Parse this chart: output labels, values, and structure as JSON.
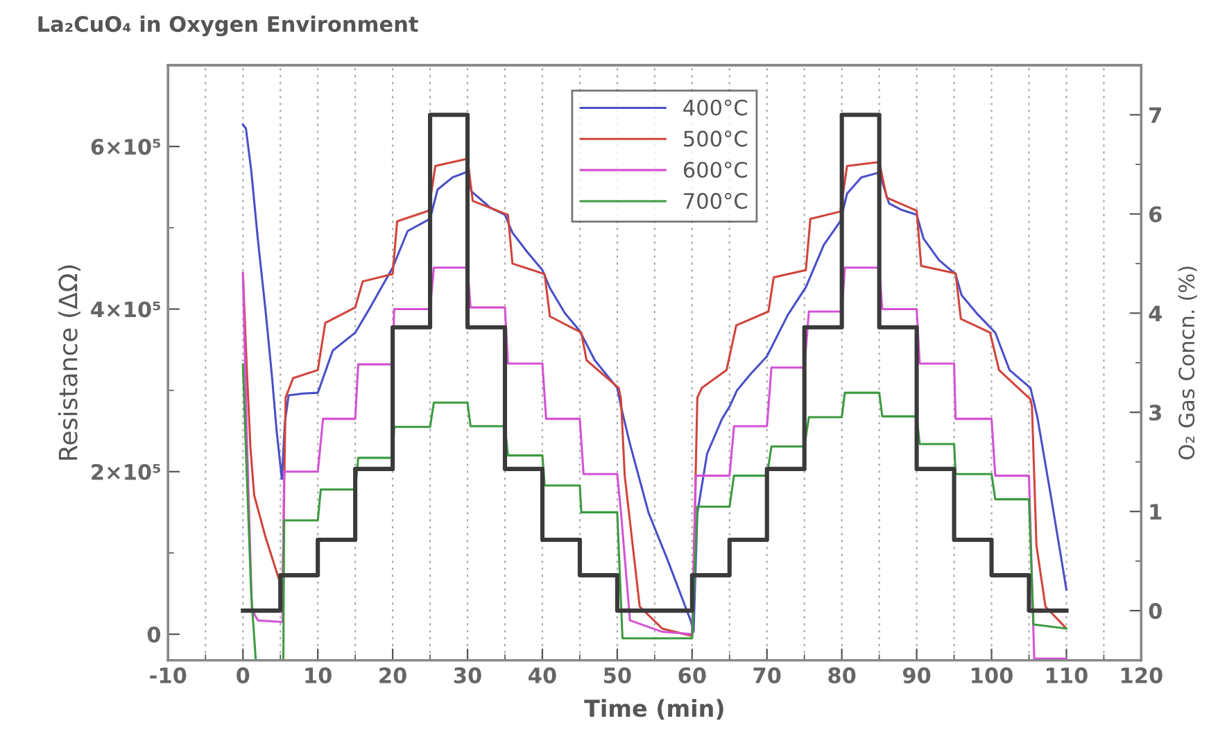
{
  "chart_data": {
    "type": "line",
    "title": "La₂CuO₄ in Oxygen Environment",
    "xlabel": "Time (min)",
    "ylabel": "Resistance (ΔΩ)",
    "y2label": "O₂ Gas Concn. (%)",
    "xlim": [
      -10,
      120
    ],
    "ylim": [
      -32000,
      700000
    ],
    "y2lim": [
      -0.7,
      7.7
    ],
    "xticks": [
      -10,
      {
        "value": -5,
        "label": null
      },
      0,
      {
        "value": 5,
        "label": null
      },
      10,
      {
        "value": 15,
        "label": null
      },
      20,
      {
        "value": 25,
        "label": null
      },
      30,
      {
        "value": 35,
        "label": null
      },
      40,
      {
        "value": 45,
        "label": null
      },
      50,
      {
        "value": 55,
        "label": null
      },
      60,
      {
        "value": 65,
        "label": null
      },
      70,
      {
        "value": 75,
        "label": null
      },
      80,
      {
        "value": 85,
        "label": null
      },
      90,
      {
        "value": 95,
        "label": null
      },
      100,
      {
        "value": 105,
        "label": null
      },
      110,
      {
        "value": 115,
        "label": null
      },
      120
    ],
    "yticks": [
      0,
      {
        "value": 100000,
        "label": null
      },
      {
        "value": 200000,
        "label": "2×10⁵"
      },
      {
        "value": 300000,
        "label": null
      },
      {
        "value": 400000,
        "label": "4×10⁵"
      },
      {
        "value": 500000,
        "label": null
      },
      {
        "value": 600000,
        "label": "6×10⁵"
      }
    ],
    "y2ticks": [
      0,
      {
        "value": 0.7,
        "label": null
      },
      {
        "value": 1.4,
        "label": "1"
      },
      {
        "value": 2.1,
        "label": null
      },
      {
        "value": 2.8,
        "label": "3"
      },
      {
        "value": 3.5,
        "label": null
      },
      {
        "value": 4.2,
        "label": "4"
      },
      {
        "value": 4.9,
        "label": null
      },
      {
        "value": 5.6,
        "label": "6"
      },
      {
        "value": 6.3,
        "label": null
      },
      7
    ],
    "grid": "x",
    "legend": "top",
    "series": [
      {
        "name": "400°C",
        "color": "#4a4fc8",
        "x": [
          0,
          0.4,
          1.1,
          2,
          3,
          3.9,
          4.5,
          5.2,
          5.6,
          6.1,
          8,
          10,
          10.5,
          12,
          15,
          17,
          20,
          22,
          25,
          26,
          28,
          30,
          30.5,
          33,
          35,
          36,
          38,
          40,
          41,
          43,
          45,
          47,
          50,
          50.5,
          51.7,
          54.2,
          56.7,
          59.8,
          60.2,
          60.7,
          62,
          64,
          65,
          66,
          67.8,
          70,
          72.8,
          75.2,
          77.6,
          79.8,
          80.7,
          82.6,
          85,
          86.3,
          88,
          90,
          90.9,
          93,
          95.2,
          96,
          98,
          100.5,
          102.4,
          105.2,
          106.1,
          108,
          110
        ],
        "values": [
          627000,
          622000,
          571000,
          485000,
          400000,
          315000,
          250000,
          191000,
          260000,
          294000,
          296000,
          297000,
          310000,
          349000,
          371000,
          402000,
          451000,
          496000,
          511000,
          547000,
          562000,
          569000,
          545000,
          525000,
          516000,
          494000,
          470000,
          448000,
          426000,
          395000,
          373000,
          337000,
          303000,
          280000,
          234000,
          149000,
          92000,
          17000,
          3000,
          149000,
          222000,
          265000,
          280000,
          300000,
          320000,
          342000,
          393000,
          427000,
          479000,
          508000,
          542000,
          562000,
          568000,
          530000,
          522000,
          516000,
          487000,
          460000,
          443000,
          417000,
          395000,
          371000,
          325000,
          303000,
          268000,
          166000,
          55000
        ]
      },
      {
        "name": "500°C",
        "color": "#d0443c",
        "x": [
          0,
          0.5,
          1,
          1.5,
          3,
          4.8,
          5.3,
          5.7,
          6.7,
          10,
          11,
          15,
          16,
          20,
          20.6,
          24.8,
          25.7,
          30,
          30.7,
          35.4,
          36,
          40.3,
          41,
          45.2,
          45.9,
          50.2,
          50.5,
          51,
          53,
          56,
          59,
          60,
          60.7,
          61.3,
          64.6,
          65.9,
          70.2,
          70.9,
          75.2,
          75.8,
          79.8,
          80.7,
          85,
          86,
          90,
          90.6,
          95.2,
          95.9,
          99.8,
          101,
          105.2,
          105.4,
          106,
          107.2,
          109.8
        ],
        "values": [
          444000,
          330000,
          230000,
          171000,
          120000,
          68000,
          60000,
          291000,
          315000,
          325000,
          383000,
          402000,
          434000,
          443000,
          508000,
          521000,
          576000,
          585000,
          533000,
          516000,
          456000,
          443000,
          391000,
          371000,
          337000,
          303000,
          289000,
          195000,
          34000,
          7000,
          0,
          -2000,
          291000,
          303000,
          325000,
          380000,
          397000,
          439000,
          448000,
          511000,
          520000,
          576000,
          581000,
          537000,
          521000,
          453000,
          444000,
          388000,
          371000,
          325000,
          289000,
          280000,
          109000,
          34000,
          9000
        ]
      },
      {
        "name": "600°C",
        "color": "#d452d4",
        "x": [
          0,
          0.5,
          1.2,
          2,
          5.3,
          5.5,
          10,
          10.7,
          15,
          15.4,
          20,
          20.2,
          25,
          25.5,
          30,
          30.4,
          35,
          35.4,
          40,
          40.5,
          45,
          45.5,
          50,
          50.5,
          51.7,
          56,
          60,
          60.5,
          65,
          65.6,
          70,
          70.6,
          75,
          75.6,
          80,
          80.4,
          85,
          85.4,
          90,
          90.4,
          95,
          95.2,
          100,
          100.5,
          105,
          105.7,
          110
        ],
        "values": [
          444000,
          250000,
          30000,
          17000,
          15000,
          200000,
          200000,
          265000,
          265000,
          332000,
          332000,
          400000,
          400000,
          451000,
          451000,
          402000,
          402000,
          333000,
          333000,
          265000,
          265000,
          197000,
          197000,
          150000,
          17000,
          3000,
          0,
          195000,
          195000,
          256000,
          256000,
          328000,
          328000,
          397000,
          397000,
          451000,
          451000,
          400000,
          400000,
          333000,
          333000,
          265000,
          265000,
          195000,
          195000,
          -30000,
          -30000
        ]
      },
      {
        "name": "700°C",
        "color": "#3c9a40",
        "x": [
          0,
          0.5,
          1.1,
          1.7,
          3.5,
          5.4,
          5.5,
          10,
          10.4,
          15,
          15.4,
          20,
          20.2,
          25,
          25.5,
          30,
          30.4,
          35,
          35.4,
          40,
          40.3,
          45,
          45.2,
          50,
          50.7,
          60,
          60.7,
          65,
          65.6,
          70,
          70.6,
          75,
          75.6,
          80,
          80.4,
          85,
          85.4,
          90,
          90.4,
          95,
          95.2,
          100,
          100.5,
          105,
          105.6,
          110
        ],
        "values": [
          332000,
          200000,
          51000,
          -30000,
          null,
          -30000,
          140000,
          140000,
          178000,
          178000,
          217000,
          217000,
          255000,
          255000,
          285000,
          285000,
          256000,
          256000,
          220000,
          220000,
          183000,
          183000,
          150000,
          150000,
          -5000,
          -5000,
          157000,
          157000,
          195000,
          195000,
          231000,
          231000,
          267000,
          267000,
          297000,
          297000,
          268000,
          268000,
          234000,
          234000,
          197000,
          197000,
          166000,
          166000,
          12000,
          7000
        ]
      },
      {
        "type": "step",
        "axis": "y2",
        "color": "#3a3a3a",
        "x": [
          0,
          5,
          10,
          15,
          20,
          25,
          30,
          35,
          40,
          45,
          50,
          60,
          65,
          70,
          75,
          80,
          85,
          90,
          95,
          100,
          105,
          110
        ],
        "values": [
          0,
          0.5,
          1,
          2,
          4,
          7,
          4,
          2,
          1,
          0.5,
          0,
          0.5,
          1,
          2,
          4,
          7,
          4,
          2,
          1,
          0.5,
          0,
          0
        ]
      }
    ]
  }
}
